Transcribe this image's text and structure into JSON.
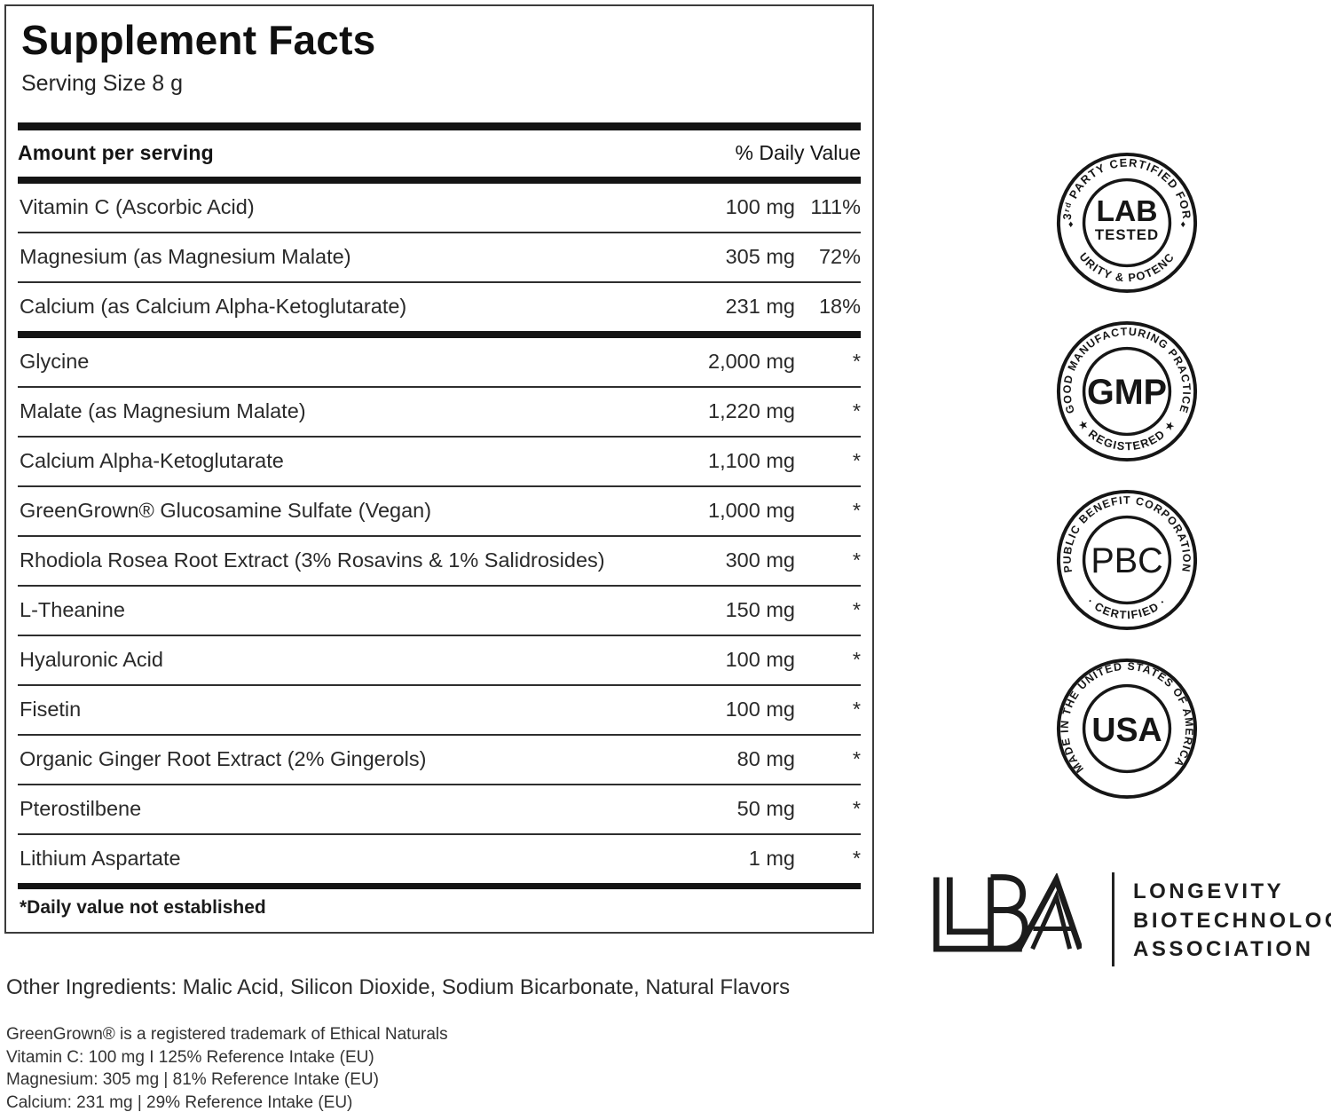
{
  "panel": {
    "title": "Supplement Facts",
    "serving_size": "Serving Size 8 g",
    "header": {
      "amount": "Amount per serving",
      "daily_value": "% Daily Value"
    },
    "rows": [
      {
        "name": "Vitamin C (Ascorbic Acid)",
        "amount": "100 mg",
        "dv": "111%"
      },
      {
        "name": "Magnesium (as Magnesium Malate)",
        "amount": "305 mg",
        "dv": "72%"
      },
      {
        "name": "Calcium (as Calcium Alpha-Ketoglutarate)",
        "amount": "231 mg",
        "dv": "18%",
        "thick_after": true
      },
      {
        "name": "Glycine",
        "amount": "2,000 mg",
        "dv": "*"
      },
      {
        "name": "Malate (as Magnesium Malate)",
        "amount": "1,220 mg",
        "dv": "*"
      },
      {
        "name": "Calcium Alpha-Ketoglutarate",
        "amount": "1,100 mg",
        "dv": "*"
      },
      {
        "name": "GreenGrown® Glucosamine Sulfate (Vegan)",
        "amount": "1,000 mg",
        "dv": "*"
      },
      {
        "name": "Rhodiola Rosea Root Extract (3% Rosavins & 1% Salidrosides)",
        "amount": "300 mg",
        "dv": "*"
      },
      {
        "name": "L-Theanine",
        "amount": "150 mg",
        "dv": "*"
      },
      {
        "name": "Hyaluronic Acid",
        "amount": "100 mg",
        "dv": "*"
      },
      {
        "name": "Fisetin",
        "amount": "100 mg",
        "dv": "*"
      },
      {
        "name": "Organic Ginger Root Extract (2% Gingerols)",
        "amount": "80 mg",
        "dv": "*"
      },
      {
        "name": "Pterostilbene",
        "amount": "50 mg",
        "dv": "*"
      },
      {
        "name": "Lithium Aspartate",
        "amount": "1 mg",
        "dv": "*"
      }
    ],
    "footnote": "*Daily value not established"
  },
  "other_ingredients": "Other Ingredients: Malic Acid, Silicon Dioxide, Sodium Bicarbonate, Natural Flavors",
  "fine_print": [
    "GreenGrown® is a registered trademark of Ethical Naturals",
    "Vitamin C: 100 mg I 125% Reference Intake (EU)",
    "Magnesium: 305 mg | 81% Reference Intake (EU)",
    "Calcium: 231 mg | 29% Reference Intake (EU)"
  ],
  "badges": {
    "lab": {
      "top": "3ʳᵈ PARTY CERTIFIED FOR",
      "center1": "LAB",
      "center2": "TESTED",
      "bottom": "PURITY & POTENCY",
      "side_glyph": "♦"
    },
    "gmp": {
      "top": "GOOD MANUFACTURING PRACTICE",
      "center1": "GMP",
      "bottom": "★ REGISTERED ★"
    },
    "pbc": {
      "top": "PUBLIC BENEFIT CORPORATION",
      "center1": "PBC",
      "bottom": "· CERTIFIED ·"
    },
    "usa": {
      "wrap": "MADE IN THE UNITED STATES OF AMERICA",
      "center1": "USA"
    }
  },
  "lba": {
    "monogram": "LBA",
    "line1": "LONGEVITY",
    "line2": "BIOTECHNOLOGY",
    "line3": "ASSOCIATION"
  },
  "colors": {
    "ink": "#161616",
    "border": "#3c3c3c",
    "background": "#ffffff"
  }
}
